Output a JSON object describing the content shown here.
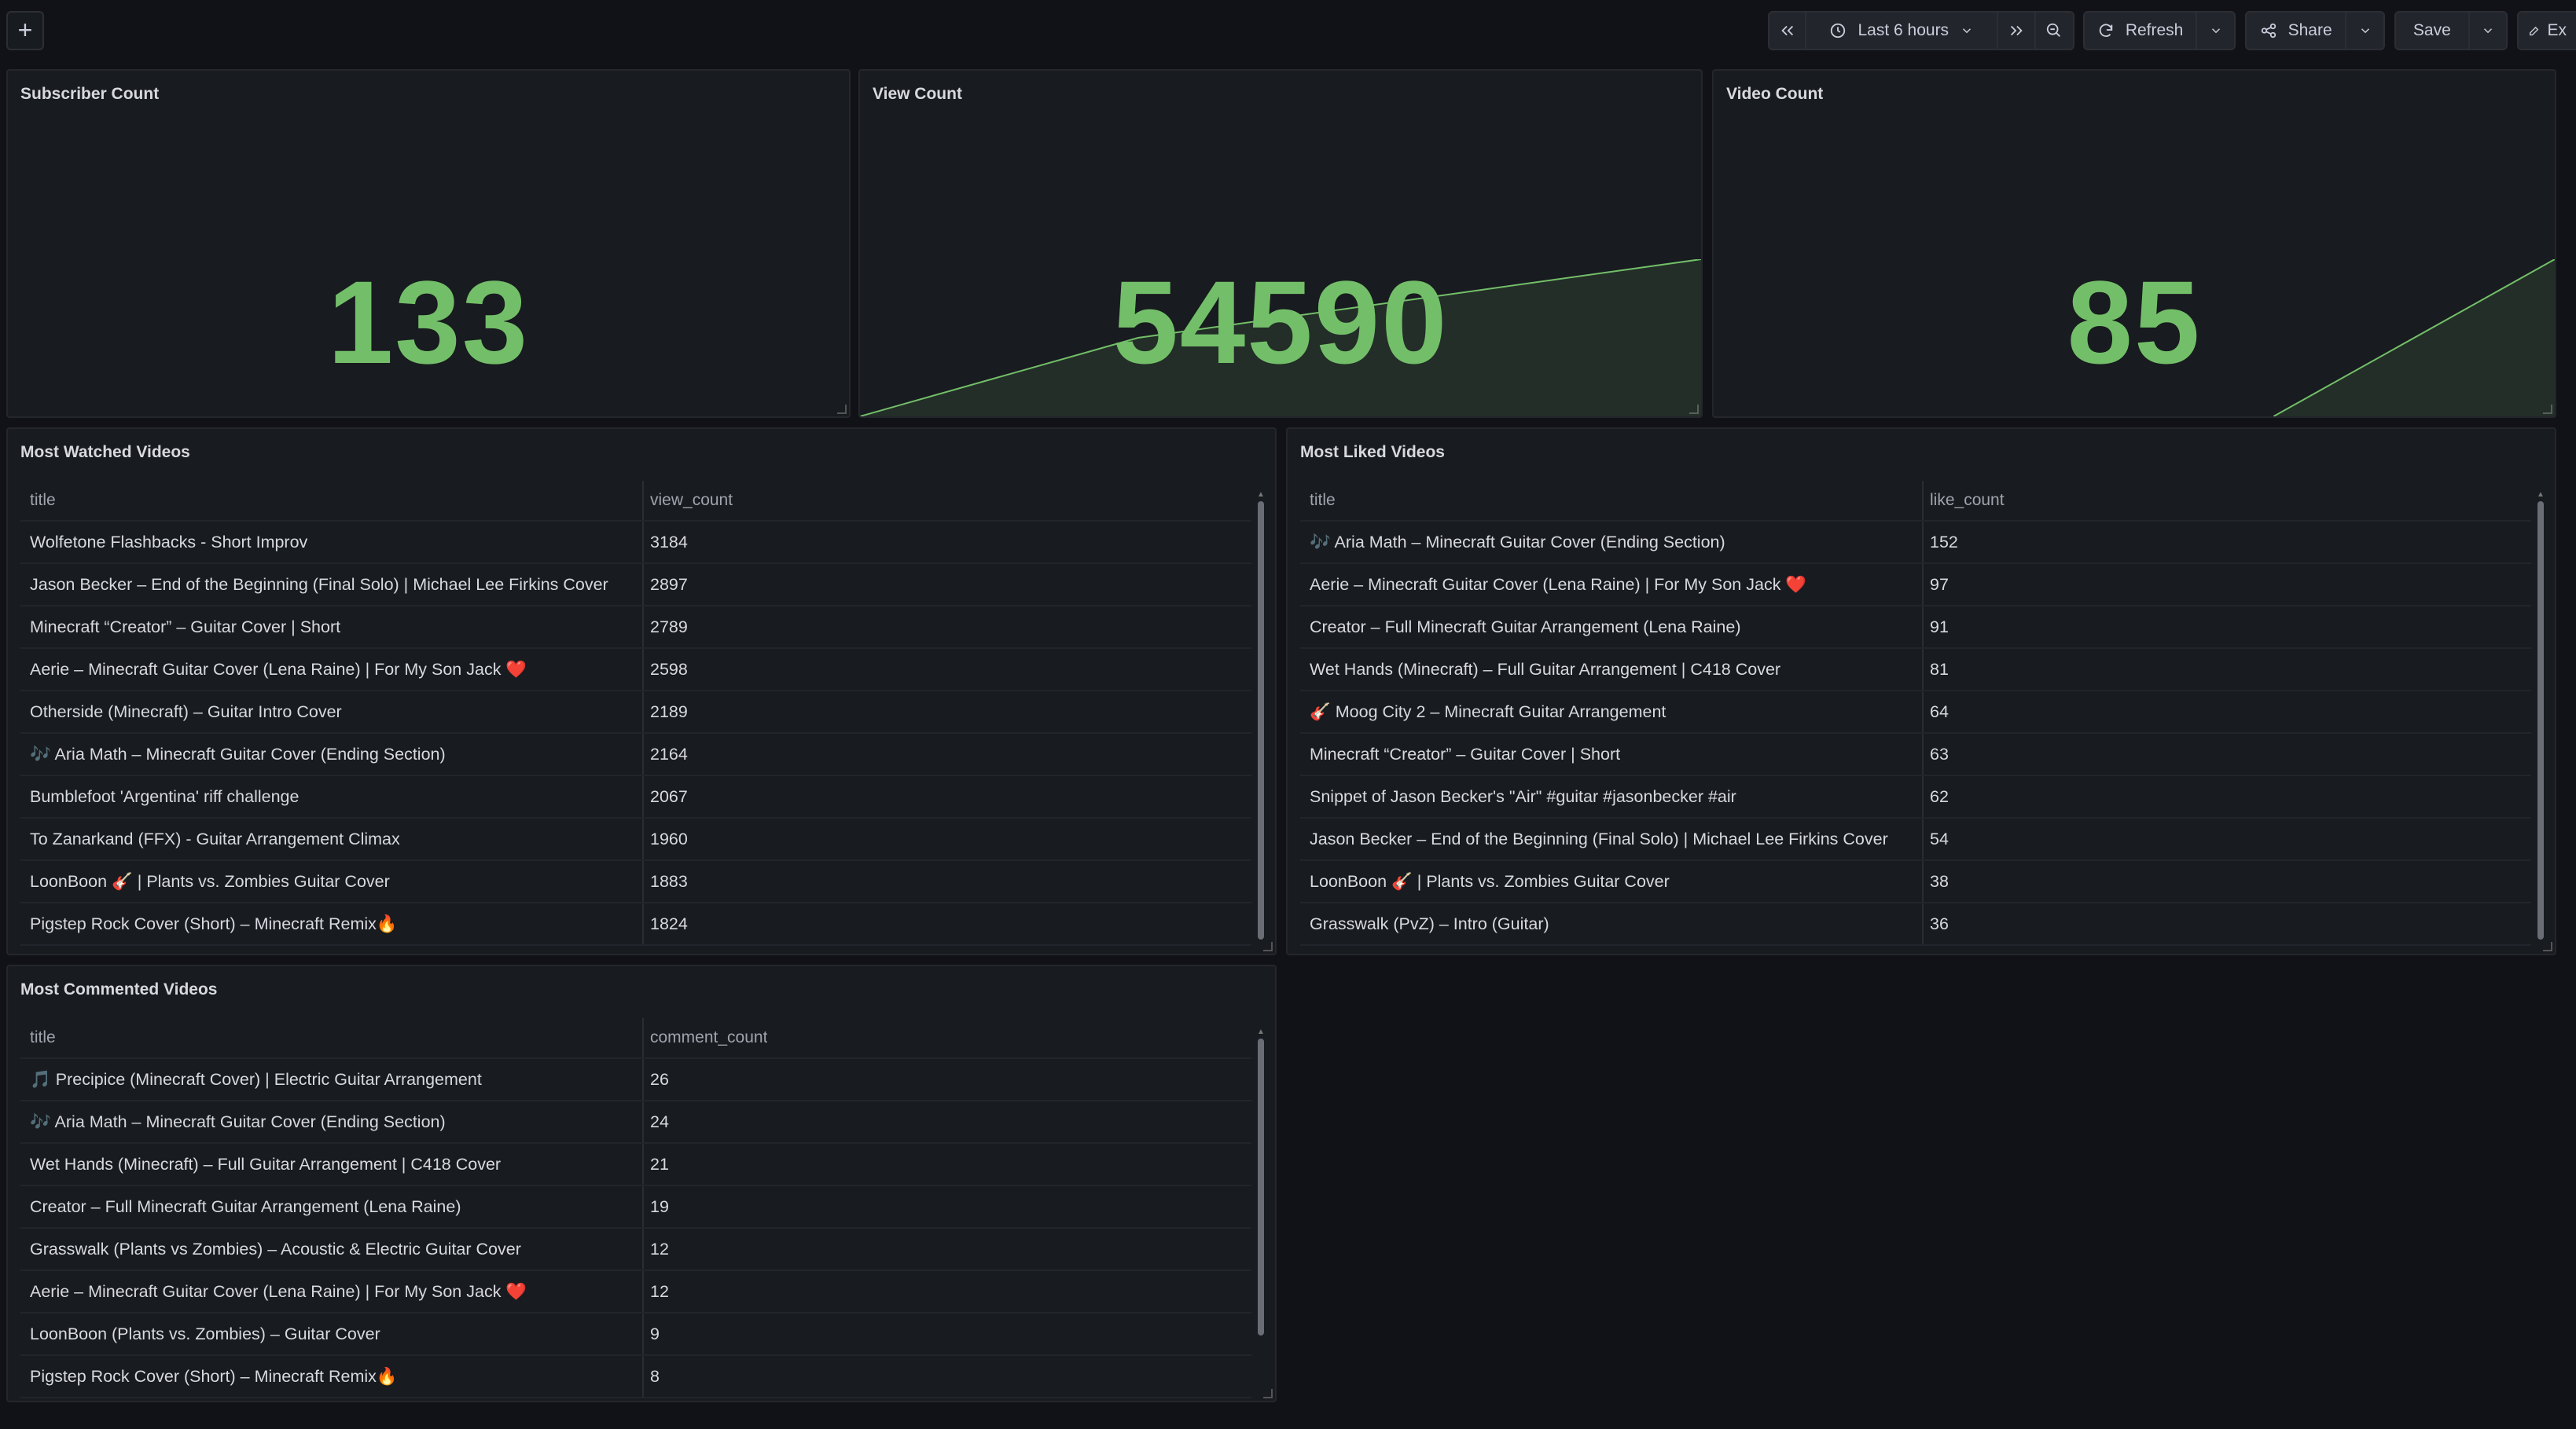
{
  "toolbar": {
    "add_label": "+",
    "time_range": "Last 6 hours",
    "refresh_label": "Refresh",
    "share_label": "Share",
    "save_label": "Save",
    "edit_label": "Ex"
  },
  "stats": [
    {
      "title": "Subscriber Count",
      "value": "133"
    },
    {
      "title": "View Count",
      "value": "54590"
    },
    {
      "title": "Video Count",
      "value": "85"
    }
  ],
  "most_watched": {
    "title": "Most Watched Videos",
    "columns": [
      "title",
      "view_count"
    ],
    "rows": [
      {
        "title": "Wolfetone Flashbacks - Short Improv",
        "value": "3184"
      },
      {
        "title": "Jason Becker – End of the Beginning (Final Solo) | Michael Lee Firkins Cover",
        "value": "2897"
      },
      {
        "title": "Minecraft “Creator” – Guitar Cover | Short",
        "value": "2789"
      },
      {
        "title": "Aerie – Minecraft Guitar Cover (Lena Raine) | For My Son Jack ❤️",
        "value": "2598"
      },
      {
        "title": "Otherside (Minecraft) – Guitar Intro Cover",
        "value": "2189"
      },
      {
        "title": "🎶 Aria Math – Minecraft Guitar Cover (Ending Section)",
        "value": "2164"
      },
      {
        "title": "Bumblefoot 'Argentina' riff challenge",
        "value": "2067"
      },
      {
        "title": "To Zanarkand (FFX) - Guitar Arrangement Climax",
        "value": "1960"
      },
      {
        "title": "LoonBoon 🎸 | Plants vs. Zombies Guitar Cover",
        "value": "1883"
      },
      {
        "title": "Pigstep Rock Cover (Short) – Minecraft Remix🔥",
        "value": "1824"
      }
    ]
  },
  "most_liked": {
    "title": "Most Liked Videos",
    "columns": [
      "title",
      "like_count"
    ],
    "rows": [
      {
        "title": "🎶 Aria Math – Minecraft Guitar Cover (Ending Section)",
        "value": "152"
      },
      {
        "title": "Aerie – Minecraft Guitar Cover (Lena Raine) | For My Son Jack ❤️",
        "value": "97"
      },
      {
        "title": "Creator – Full Minecraft Guitar Arrangement (Lena Raine)",
        "value": "91"
      },
      {
        "title": "Wet Hands (Minecraft) – Full Guitar Arrangement | C418 Cover",
        "value": "81"
      },
      {
        "title": "🎸 Moog City 2 – Minecraft Guitar Arrangement",
        "value": "64"
      },
      {
        "title": "Minecraft “Creator” – Guitar Cover | Short",
        "value": "63"
      },
      {
        "title": "Snippet of Jason Becker's \"Air\" #guitar #jasonbecker #air",
        "value": "62"
      },
      {
        "title": "Jason Becker – End of the Beginning (Final Solo) | Michael Lee Firkins Cover",
        "value": "54"
      },
      {
        "title": "LoonBoon 🎸 | Plants vs. Zombies Guitar Cover",
        "value": "38"
      },
      {
        "title": "Grasswalk (PvZ) – Intro (Guitar)",
        "value": "36"
      }
    ]
  },
  "most_commented": {
    "title": "Most Commented Videos",
    "columns": [
      "title",
      "comment_count"
    ],
    "rows": [
      {
        "title": "🎵 Precipice (Minecraft Cover) | Electric Guitar Arrangement",
        "value": "26"
      },
      {
        "title": "🎶 Aria Math – Minecraft Guitar Cover (Ending Section)",
        "value": "24"
      },
      {
        "title": "Wet Hands (Minecraft) – Full Guitar Arrangement | C418 Cover",
        "value": "21"
      },
      {
        "title": "Creator – Full Minecraft Guitar Arrangement (Lena Raine)",
        "value": "19"
      },
      {
        "title": "Grasswalk (Plants vs Zombies) – Acoustic & Electric Guitar Cover",
        "value": "12"
      },
      {
        "title": "Aerie – Minecraft Guitar Cover (Lena Raine) | For My Son Jack ❤️",
        "value": "12"
      },
      {
        "title": "LoonBoon (Plants vs. Zombies) – Guitar Cover",
        "value": "9"
      },
      {
        "title": "Pigstep Rock Cover (Short) – Minecraft Remix🔥",
        "value": "8"
      }
    ]
  },
  "colors": {
    "background": "#111217",
    "panel": "#181b1f",
    "stat_green": "#73bf69"
  }
}
